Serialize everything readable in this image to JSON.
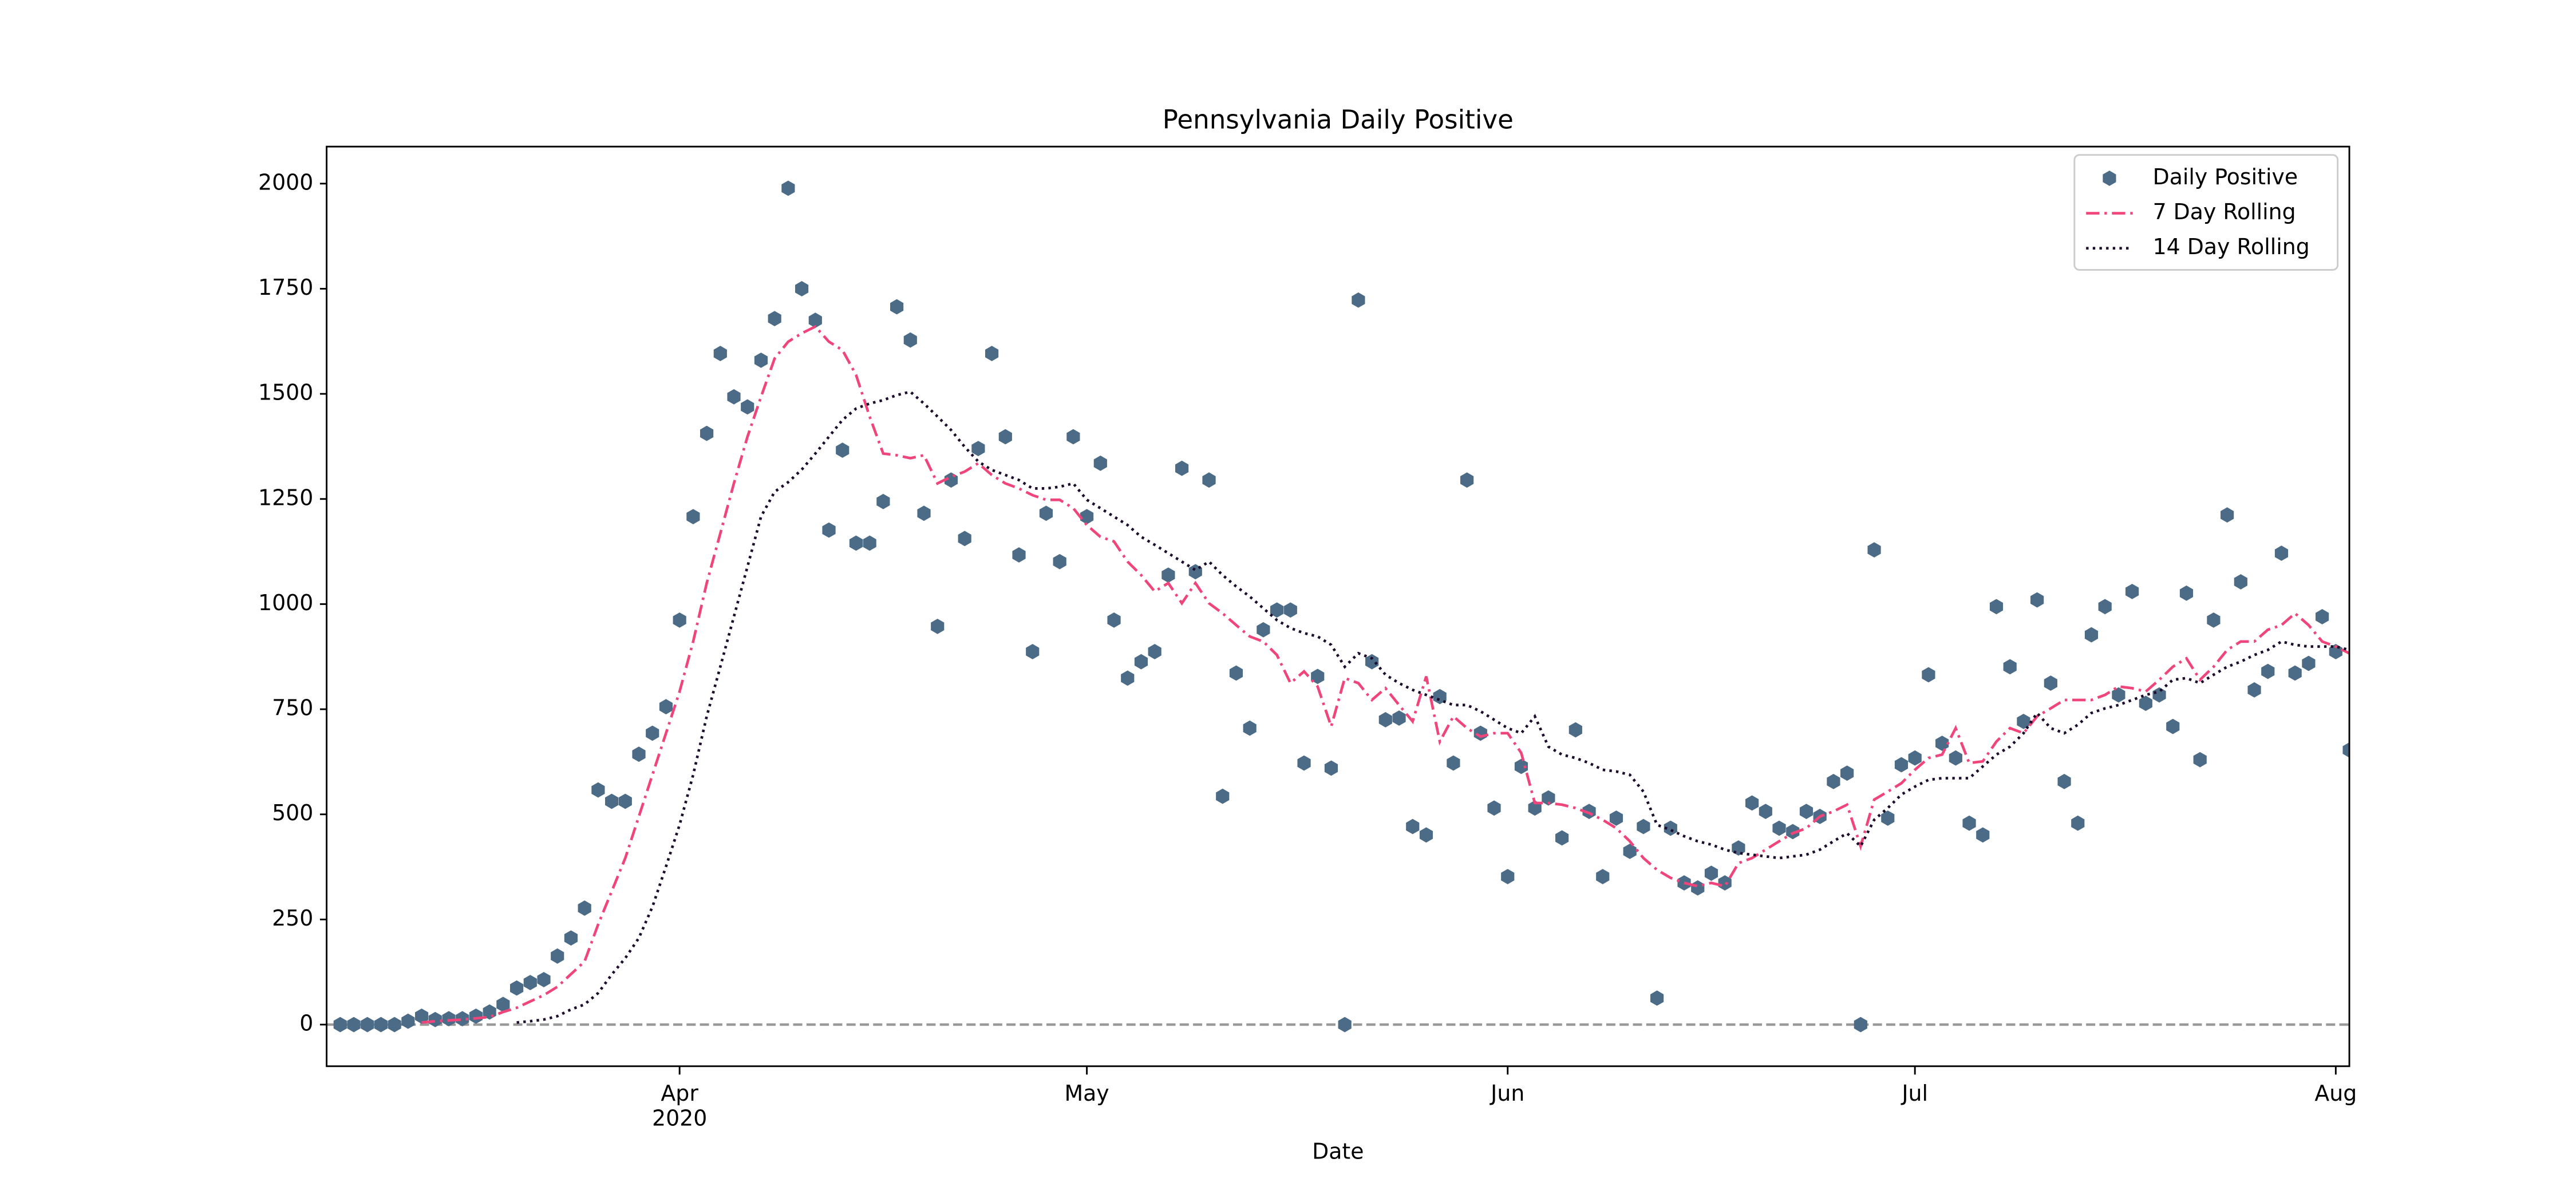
{
  "chart_data": {
    "type": "line",
    "title": "Pennsylvania Daily Positive",
    "xlabel": "Date",
    "xlim": [
      "2020-03-06",
      "2020-08-02"
    ],
    "xticks": [
      {
        "value": "2020-04-01",
        "label": "Apr",
        "sublabel": "2020"
      },
      {
        "value": "2020-05-01",
        "label": "May"
      },
      {
        "value": "2020-06-01",
        "label": "Jun"
      },
      {
        "value": "2020-07-01",
        "label": "Jul"
      },
      {
        "value": "2020-08-01",
        "label": "Aug"
      }
    ],
    "ylim": [
      -99,
      2088
    ],
    "yticks": [
      0,
      250,
      500,
      750,
      1000,
      1250,
      1500,
      1750,
      2000
    ],
    "hline": 0,
    "grid": false,
    "legend": "upper right",
    "x": [
      "2020-03-07",
      "2020-03-08",
      "2020-03-09",
      "2020-03-10",
      "2020-03-11",
      "2020-03-12",
      "2020-03-13",
      "2020-03-14",
      "2020-03-15",
      "2020-03-16",
      "2020-03-17",
      "2020-03-18",
      "2020-03-19",
      "2020-03-20",
      "2020-03-21",
      "2020-03-22",
      "2020-03-23",
      "2020-03-24",
      "2020-03-25",
      "2020-03-26",
      "2020-03-27",
      "2020-03-28",
      "2020-03-29",
      "2020-03-30",
      "2020-03-31",
      "2020-04-01",
      "2020-04-02",
      "2020-04-03",
      "2020-04-04",
      "2020-04-05",
      "2020-04-06",
      "2020-04-07",
      "2020-04-08",
      "2020-04-09",
      "2020-04-10",
      "2020-04-11",
      "2020-04-12",
      "2020-04-13",
      "2020-04-14",
      "2020-04-15",
      "2020-04-16",
      "2020-04-17",
      "2020-04-18",
      "2020-04-19",
      "2020-04-20",
      "2020-04-21",
      "2020-04-22",
      "2020-04-23",
      "2020-04-24",
      "2020-04-25",
      "2020-04-26",
      "2020-04-27",
      "2020-04-28",
      "2020-04-29",
      "2020-04-30",
      "2020-05-01",
      "2020-05-02",
      "2020-05-03",
      "2020-05-04",
      "2020-05-05",
      "2020-05-06",
      "2020-05-07",
      "2020-05-08",
      "2020-05-09",
      "2020-05-10",
      "2020-05-11",
      "2020-05-12",
      "2020-05-13",
      "2020-05-14",
      "2020-05-15",
      "2020-05-16",
      "2020-05-17",
      "2020-05-18",
      "2020-05-19",
      "2020-05-20",
      "2020-05-21",
      "2020-05-22",
      "2020-05-23",
      "2020-05-24",
      "2020-05-25",
      "2020-05-26",
      "2020-05-27",
      "2020-05-28",
      "2020-05-29",
      "2020-05-30",
      "2020-05-31",
      "2020-06-01",
      "2020-06-02",
      "2020-06-03",
      "2020-06-04",
      "2020-06-05",
      "2020-06-06",
      "2020-06-07",
      "2020-06-08",
      "2020-06-09",
      "2020-06-10",
      "2020-06-11",
      "2020-06-12",
      "2020-06-13",
      "2020-06-14",
      "2020-06-15",
      "2020-06-16",
      "2020-06-17",
      "2020-06-18",
      "2020-06-19",
      "2020-06-20",
      "2020-06-21",
      "2020-06-22",
      "2020-06-23",
      "2020-06-24",
      "2020-06-25",
      "2020-06-26",
      "2020-06-27",
      "2020-06-28",
      "2020-06-29",
      "2020-06-30",
      "2020-07-01",
      "2020-07-02",
      "2020-07-03",
      "2020-07-04",
      "2020-07-05",
      "2020-07-06",
      "2020-07-07",
      "2020-07-08",
      "2020-07-09",
      "2020-07-10",
      "2020-07-11",
      "2020-07-12",
      "2020-07-13",
      "2020-07-14",
      "2020-07-15",
      "2020-07-16",
      "2020-07-17",
      "2020-07-18",
      "2020-07-19",
      "2020-07-20",
      "2020-07-21",
      "2020-07-22",
      "2020-07-23",
      "2020-07-24",
      "2020-07-25",
      "2020-07-26",
      "2020-07-27",
      "2020-07-28",
      "2020-07-29",
      "2020-07-30",
      "2020-07-31",
      "2020-08-01",
      "2020-08-02"
    ],
    "series": [
      {
        "name": "Daily Positive",
        "color": "#4c6b87",
        "style": "markers",
        "values": [
          0,
          0,
          0,
          0,
          0,
          8,
          20,
          12,
          14,
          14,
          20,
          30,
          48,
          87,
          100,
          107,
          163,
          206,
          277,
          558,
          531,
          531,
          643,
          693,
          756,
          962,
          1208,
          1406,
          1596,
          1493,
          1469,
          1580,
          1679,
          1989,
          1750,
          1675,
          1176,
          1366,
          1145,
          1145,
          1244,
          1707,
          1628,
          1216,
          947,
          1295,
          1156,
          1370,
          1596,
          1398,
          1117,
          887,
          1216,
          1101,
          1398,
          1208,
          1335,
          962,
          824,
          863,
          887,
          1069,
          1323,
          1077,
          1295,
          543,
          836,
          705,
          939,
          986,
          986,
          622,
          828,
          610,
          0,
          1723,
          863,
          725,
          729,
          471,
          451,
          780,
          622,
          1295,
          693,
          515,
          352,
          614,
          515,
          539,
          444,
          701,
          507,
          352,
          491,
          412,
          471,
          63,
          467,
          337,
          325,
          360,
          337,
          420,
          527,
          507,
          467,
          459,
          507,
          495,
          578,
          598,
          0,
          1129,
          491,
          618,
          634,
          832,
          669,
          634,
          479,
          451,
          994,
          851,
          721,
          1010,
          812,
          578,
          479,
          927,
          994,
          784,
          1030,
          764,
          784,
          709,
          1026,
          630,
          962,
          1212,
          1053,
          796,
          840,
          1121,
          836,
          859,
          970,
          887,
          653
        ]
      },
      {
        "name": "7 Day Rolling",
        "color": "#f0457b",
        "style": "dashdot",
        "values": [
          null,
          null,
          null,
          null,
          null,
          null,
          5,
          8,
          10,
          12,
          15,
          18,
          30,
          40,
          55,
          70,
          90,
          120,
          150,
          238,
          317,
          396,
          495,
          594,
          693,
          792,
          911,
          1050,
          1168,
          1287,
          1398,
          1493,
          1584,
          1624,
          1644,
          1660,
          1624,
          1604,
          1545,
          1446,
          1358,
          1354,
          1347,
          1354,
          1287,
          1303,
          1315,
          1335,
          1307,
          1287,
          1275,
          1259,
          1248,
          1248,
          1228,
          1188,
          1160,
          1149,
          1101,
          1069,
          1030,
          1050,
          1002,
          1050,
          1002,
          978,
          950,
          923,
          911,
          879,
          812,
          840,
          804,
          709,
          824,
          812,
          772,
          800,
          760,
          721,
          828,
          673,
          733,
          705,
          685,
          693,
          693,
          646,
          527,
          527,
          523,
          515,
          503,
          487,
          467,
          436,
          396,
          368,
          349,
          337,
          329,
          337,
          329,
          384,
          396,
          416,
          436,
          455,
          467,
          495,
          507,
          523,
          424,
          535,
          554,
          574,
          606,
          634,
          642,
          705,
          622,
          626,
          673,
          705,
          693,
          733,
          752,
          772,
          772,
          772,
          784,
          804,
          800,
          792,
          820,
          851,
          871,
          820,
          851,
          891,
          911,
          911,
          939,
          950,
          978,
          950,
          911,
          899,
          883
        ]
      },
      {
        "name": "14 Day Rolling",
        "color": "#1c0d2c",
        "style": "dotted",
        "values": [
          null,
          null,
          null,
          null,
          null,
          null,
          null,
          null,
          null,
          null,
          null,
          null,
          null,
          5,
          8,
          12,
          20,
          36,
          48,
          75,
          119,
          158,
          206,
          280,
          376,
          475,
          594,
          733,
          851,
          970,
          1089,
          1208,
          1267,
          1290,
          1320,
          1358,
          1398,
          1438,
          1465,
          1477,
          1485,
          1497,
          1505,
          1477,
          1446,
          1414,
          1374,
          1339,
          1319,
          1307,
          1295,
          1275,
          1275,
          1279,
          1287,
          1248,
          1228,
          1208,
          1188,
          1160,
          1141,
          1121,
          1101,
          1081,
          1101,
          1069,
          1042,
          1018,
          990,
          962,
          943,
          931,
          923,
          903,
          851,
          883,
          871,
          832,
          812,
          796,
          784,
          772,
          760,
          760,
          745,
          725,
          705,
          693,
          733,
          661,
          642,
          634,
          622,
          606,
          602,
          594,
          554,
          475,
          463,
          448,
          436,
          428,
          416,
          408,
          404,
          400,
          396,
          400,
          404,
          416,
          436,
          455,
          424,
          487,
          515,
          547,
          566,
          582,
          586,
          586,
          586,
          614,
          642,
          661,
          693,
          741,
          705,
          693,
          713,
          741,
          752,
          760,
          772,
          784,
          792,
          820,
          824,
          812,
          832,
          851,
          863,
          879,
          891,
          911,
          903,
          899,
          899,
          899,
          891
        ]
      }
    ]
  }
}
